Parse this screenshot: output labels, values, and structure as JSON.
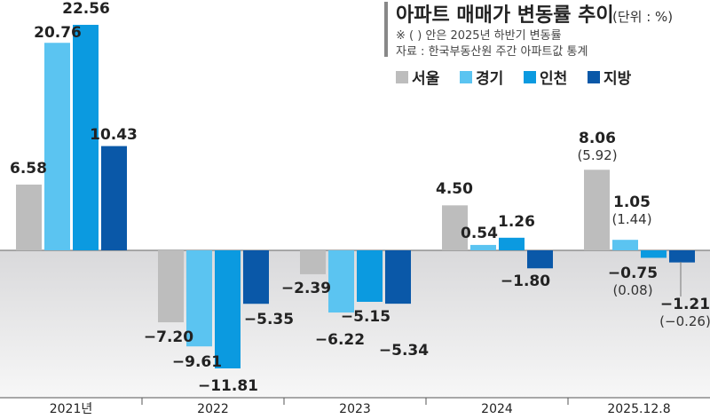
{
  "chart_data": {
    "type": "bar",
    "title": "아파트 매매가 변동률 추이",
    "unit_note": "(단위 : %)",
    "note": "※ (  ) 안은 2025년 하반기 변동률",
    "source": "자료 : 한국부동산원 주간 아파트값 통계",
    "categories": [
      "2021년",
      "2022",
      "2023",
      "2024",
      "2025.12.8"
    ],
    "series": [
      {
        "name": "서울",
        "color": "#bdbdbd",
        "values": [
          6.58,
          -7.2,
          -2.39,
          4.5,
          8.06
        ],
        "h2_2025": 5.92
      },
      {
        "name": "경기",
        "color": "#5bc4f1",
        "values": [
          20.76,
          -9.61,
          -6.22,
          0.54,
          1.05
        ],
        "h2_2025": 1.44
      },
      {
        "name": "인천",
        "color": "#0b9ae0",
        "values": [
          22.56,
          -11.81,
          -5.15,
          1.26,
          -0.75
        ],
        "h2_2025": 0.08
      },
      {
        "name": "지방",
        "color": "#0a58a8",
        "values": [
          10.43,
          -5.35,
          -5.34,
          -1.8,
          -1.21
        ],
        "h2_2025": -0.26
      }
    ],
    "ylim": [
      -14,
      24
    ],
    "legend": "top-right",
    "grid": false
  }
}
